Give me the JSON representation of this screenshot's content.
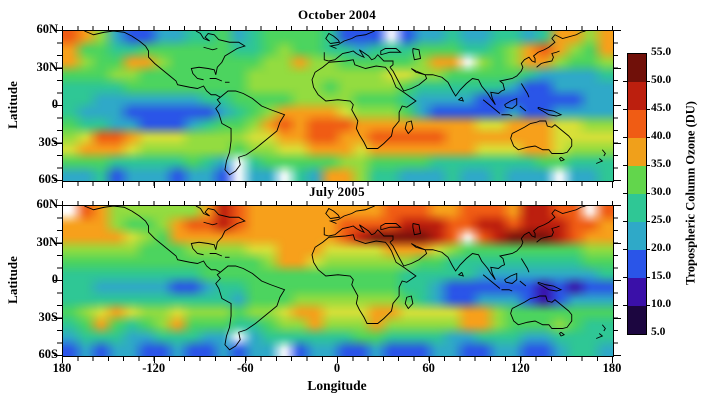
{
  "axes": {
    "x_label": "Longitude",
    "y_label": "Latitude",
    "lat_tick_labels": [
      "60N",
      "30N",
      "0",
      "30S",
      "60S"
    ],
    "lon_tick_labels": [
      "180",
      "-120",
      "-60",
      "0",
      "60",
      "120",
      "180"
    ]
  },
  "colorbar": {
    "title": "Tropospheric Column Ozone (DU)",
    "tick_labels_top_to_bottom": [
      "55.0",
      "50.0",
      "45.0",
      "40.0",
      "35.0",
      "30.0",
      "25.0",
      "20.0",
      "15.0",
      "10.0",
      "5.0"
    ],
    "block_colors_bottom_to_top": [
      "#1c0640",
      "#3a10a8",
      "#2a55e8",
      "#2fa9c8",
      "#2fc795",
      "#62d64c",
      "#f0a01b",
      "#f05c14",
      "#bc1f0e",
      "#701009"
    ]
  },
  "chart_data": {
    "type": "heatmap",
    "units": "DU",
    "lon_range": [
      -180,
      180
    ],
    "lat_range": [
      -60,
      60
    ],
    "value_range": [
      5,
      55
    ],
    "grid_cell_degrees": 10,
    "grid_order": "rows from 60N to 60S, columns from 180W to 180E",
    "palette": {
      "w": "#ffffff",
      "0": "#1c0640",
      "1": "#3a10a8",
      "2": "#2a55e8",
      "3": "#2fa9c8",
      "4": "#2fc795",
      "5": "#4cd45f",
      "6": "#93dc40",
      "7": "#d8e038",
      "8": "#f7a01b",
      "9": "#f05c14",
      "A": "#bc1f0e",
      "B": "#7a120c"
    },
    "palette_du": {
      "w": "missing",
      "0": 7.5,
      "1": 12.5,
      "2": 17.5,
      "3": 22.5,
      "4": 27.5,
      "5": 30,
      "6": 33,
      "7": 35,
      "8": 39,
      "9": 43,
      "A": 47,
      "B": 52
    },
    "panels": [
      {
        "title": "October 2004",
        "grid": [
          "986322334453455554222w23343344348868",
          "855445555554456554434445554456898658",
          "86558865555556686655555688w656886556",
          "555665555555666666666776655555433334",
          "444455555555666665666654444443223333",
          "443333333445555666655543333222222233",
          "433322222234568888766653222223223333",
          "544332223455689899988888888778887766",
          "679987776666778899889999988888887777",
          "788876666665667788878888888777887666",
          "55544444543w455555665555444444455444",
          "33423332332w33w43886443334334333w334"
        ]
      },
      {
        "title": "July 2005",
        "grid": [
          "w986666668A9888888888999889998AA99w9",
          "8886556899A98888889999AAA99AA9AAA998",
          "8888765888888888889ABBBBA9w9ABBBA988",
          "666665556666778887777888765555555566",
          "555555555555568876666665544444444455",
          "444444444555555555555544444333333334",
          "443333322344555555555544322222212122",
          "444444444443555666666654322333212333",
          "567876676665667887778877778865555555",
          "458545685554456686668666668865556544",
          "34443344433w344444455444433444334444",
          "23233223223233w233223222332233223443"
        ]
      }
    ]
  }
}
